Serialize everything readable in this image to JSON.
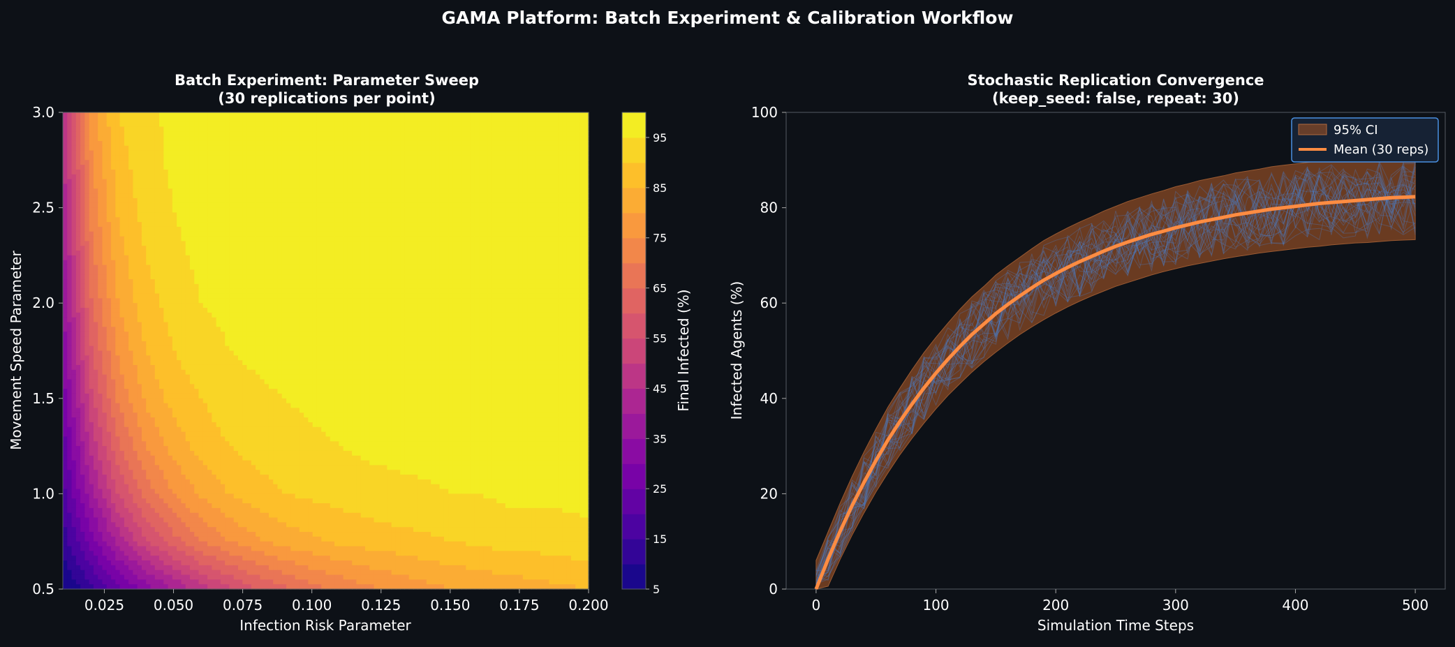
{
  "figure": {
    "title": "GAMA Platform: Batch Experiment & Calibration Workflow",
    "background": "#0d1117",
    "text_color": "#ffffff"
  },
  "chart_data": [
    {
      "type": "heatmap",
      "subtype": "filled-contour",
      "title_line1": "Batch Experiment: Parameter Sweep",
      "title_line2": "(30 replications per point)",
      "xlabel": "Infection Risk Parameter",
      "ylabel": "Movement Speed Parameter",
      "xlim": [
        0.01,
        0.2
      ],
      "ylim": [
        0.5,
        3.0
      ],
      "xticks": [
        "0.025",
        "0.050",
        "0.075",
        "0.100",
        "0.125",
        "0.150",
        "0.175",
        "0.200"
      ],
      "yticks": [
        "0.5",
        "1.0",
        "1.5",
        "2.0",
        "2.5",
        "3.0"
      ],
      "colormap": "plasma",
      "colorbar": {
        "label": "Final Infected (%)",
        "range": [
          5,
          100
        ],
        "ticks": [
          "5",
          "15",
          "25",
          "35",
          "45",
          "55",
          "65",
          "75",
          "85",
          "95"
        ]
      },
      "risk_values": [
        0.01,
        0.02,
        0.03,
        0.04,
        0.05,
        0.06,
        0.07,
        0.08,
        0.09,
        0.1,
        0.11,
        0.12,
        0.13,
        0.14,
        0.15,
        0.16,
        0.17,
        0.18,
        0.19,
        0.2
      ],
      "speed_values": [
        0.5,
        0.75,
        1.0,
        1.25,
        1.5,
        1.75,
        2.0,
        2.25,
        2.5,
        2.75,
        3.0
      ],
      "final_infected": [
        [
          5,
          13,
          23,
          32,
          40,
          48,
          54,
          60,
          64,
          68,
          71,
          74,
          76,
          78,
          80,
          81,
          82,
          83,
          84,
          85
        ],
        [
          12,
          27,
          42,
          54,
          63,
          70,
          75,
          79,
          82,
          84,
          86,
          87,
          88,
          89,
          90,
          91,
          92,
          92,
          93,
          93
        ],
        [
          18,
          38,
          55,
          67,
          75,
          81,
          85,
          88,
          90,
          91,
          92,
          93,
          94,
          94,
          95,
          95,
          96,
          96,
          96,
          97
        ],
        [
          22,
          46,
          64,
          75,
          82,
          87,
          90,
          92,
          93,
          94,
          95,
          96,
          96,
          97,
          97,
          97,
          98,
          98,
          98,
          98
        ],
        [
          27,
          53,
          71,
          81,
          87,
          90,
          93,
          94,
          95,
          96,
          97,
          97,
          98,
          98,
          98,
          98,
          99,
          99,
          99,
          99
        ],
        [
          31,
          59,
          76,
          85,
          90,
          93,
          95,
          96,
          97,
          97,
          98,
          98,
          99,
          99,
          99,
          99,
          99,
          99,
          99,
          99
        ],
        [
          35,
          64,
          80,
          88,
          92,
          95,
          96,
          97,
          98,
          98,
          99,
          99,
          99,
          99,
          99,
          99,
          99,
          99,
          99,
          99
        ],
        [
          38,
          68,
          83,
          90,
          94,
          96,
          97,
          98,
          98,
          99,
          99,
          99,
          99,
          99,
          99,
          99,
          99,
          99,
          99,
          99
        ],
        [
          41,
          71,
          86,
          92,
          95,
          97,
          98,
          98,
          99,
          99,
          99,
          99,
          99,
          99,
          99,
          99,
          99,
          99,
          99,
          99
        ],
        [
          44,
          74,
          88,
          93,
          96,
          97,
          98,
          99,
          99,
          99,
          99,
          99,
          99,
          99,
          99,
          99,
          99,
          99,
          99,
          99
        ],
        [
          47,
          77,
          90,
          94,
          96,
          98,
          98,
          99,
          99,
          99,
          99,
          99,
          99,
          99,
          99,
          99,
          99,
          99,
          99,
          99
        ]
      ]
    },
    {
      "type": "line",
      "title_line1": "Stochastic Replication Convergence",
      "title_line2": "(keep_seed: false, repeat: 30)",
      "xlabel": "Simulation Time Steps",
      "ylabel": "Infected Agents (%)",
      "xlim": [
        -25,
        525
      ],
      "ylim": [
        0,
        100
      ],
      "xticks": [
        "0",
        "100",
        "200",
        "300",
        "400",
        "500"
      ],
      "yticks": [
        "0",
        "20",
        "40",
        "60",
        "80",
        "100"
      ],
      "legend_position": "top-right",
      "legend": [
        "95% CI",
        "Mean (30 reps)"
      ],
      "x": [
        0,
        10,
        20,
        30,
        40,
        50,
        60,
        70,
        80,
        90,
        100,
        110,
        120,
        130,
        140,
        150,
        160,
        170,
        180,
        190,
        200,
        210,
        220,
        230,
        240,
        250,
        260,
        270,
        280,
        290,
        300,
        310,
        320,
        330,
        340,
        350,
        360,
        370,
        380,
        390,
        400,
        410,
        420,
        430,
        440,
        450,
        460,
        470,
        480,
        490,
        500
      ],
      "mean": [
        0,
        6.3,
        12.1,
        17.5,
        22.4,
        27.0,
        31.3,
        35.2,
        38.8,
        42.2,
        45.3,
        48.2,
        50.9,
        53.4,
        55.6,
        57.8,
        59.7,
        61.5,
        63.2,
        64.8,
        66.2,
        67.5,
        68.7,
        69.8,
        70.9,
        71.9,
        72.8,
        73.6,
        74.4,
        75.1,
        75.8,
        76.4,
        77.0,
        77.5,
        78.0,
        78.5,
        78.9,
        79.3,
        79.7,
        80.0,
        80.3,
        80.6,
        80.9,
        81.1,
        81.3,
        81.5,
        81.7,
        81.9,
        82.1,
        82.2,
        82.3
      ],
      "ci_lower": [
        0,
        0.6,
        6.2,
        11.3,
        16.0,
        20.4,
        24.4,
        28.2,
        31.6,
        34.8,
        37.8,
        40.6,
        43.1,
        45.5,
        47.7,
        49.7,
        51.6,
        53.4,
        55.0,
        56.5,
        57.9,
        59.2,
        60.4,
        61.5,
        62.5,
        63.5,
        64.3,
        65.1,
        65.9,
        66.6,
        67.2,
        67.8,
        68.3,
        68.8,
        69.3,
        69.7,
        70.1,
        70.5,
        70.8,
        71.1,
        71.4,
        71.7,
        71.9,
        72.2,
        72.4,
        72.6,
        72.7,
        72.9,
        73.1,
        73.2,
        73.3
      ],
      "ci_upper": [
        6.0,
        12.0,
        18.0,
        23.6,
        28.8,
        33.6,
        38.2,
        42.2,
        46.0,
        49.6,
        52.8,
        55.8,
        58.7,
        61.3,
        63.5,
        65.9,
        67.8,
        69.6,
        71.4,
        73.1,
        74.5,
        75.8,
        77.0,
        78.1,
        79.3,
        80.3,
        81.3,
        82.1,
        82.9,
        83.6,
        84.4,
        85.0,
        85.7,
        86.2,
        86.7,
        87.3,
        87.7,
        88.1,
        88.6,
        88.9,
        89.2,
        89.5,
        89.9,
        90.0,
        90.2,
        90.4,
        90.7,
        90.9,
        91.1,
        91.2,
        91.3
      ],
      "replications": 30
    }
  ],
  "colors": {
    "mean_line": "#ff8c42",
    "ci_fill": "#8a4a26",
    "replication_line": "#4a7fc9",
    "legend_border": "#4a90e2",
    "legend_bg": "#162234",
    "axis": "#555b63",
    "text": "#ffffff"
  }
}
